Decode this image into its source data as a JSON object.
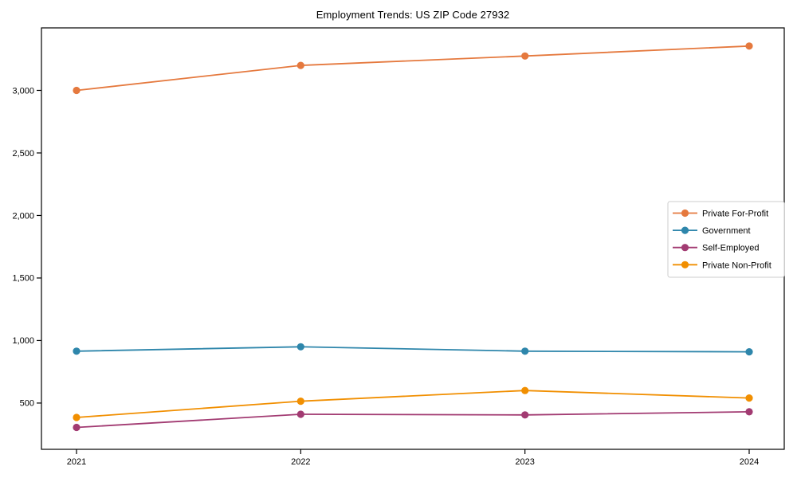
{
  "chart_data": {
    "type": "line",
    "title": "Employment Trends: US ZIP Code 27932",
    "xlabel": "",
    "ylabel": "",
    "categories": [
      "2021",
      "2022",
      "2023",
      "2024"
    ],
    "series": [
      {
        "name": "Private For-Profit",
        "color": "#E5793E",
        "values": [
          3000,
          3200,
          3275,
          3355
        ]
      },
      {
        "name": "Government",
        "color": "#2E86AB",
        "values": [
          915,
          950,
          915,
          910
        ]
      },
      {
        "name": "Self-Employed",
        "color": "#A23B72",
        "values": [
          305,
          410,
          405,
          430
        ]
      },
      {
        "name": "Private Non-Profit",
        "color": "#F18F01",
        "values": [
          385,
          515,
          600,
          540
        ]
      }
    ],
    "ylim": [
      130,
      3500
    ],
    "yticks": [
      {
        "value": 500,
        "label": "500"
      },
      {
        "value": 1000,
        "label": "1,000"
      },
      {
        "value": 1500,
        "label": "1,500"
      },
      {
        "value": 2000,
        "label": "2,000"
      },
      {
        "value": 2500,
        "label": "2,500"
      },
      {
        "value": 3000,
        "label": "3,000"
      }
    ],
    "grid": false,
    "marker": "circle",
    "legend": {
      "position": "center-right",
      "border_color": "#CCCCCC",
      "background": "#FFFFFF",
      "entries": [
        "Private For-Profit",
        "Government",
        "Self-Employed",
        "Private Non-Profit"
      ]
    },
    "axis_color": "#000000",
    "text_color": "#000000"
  }
}
